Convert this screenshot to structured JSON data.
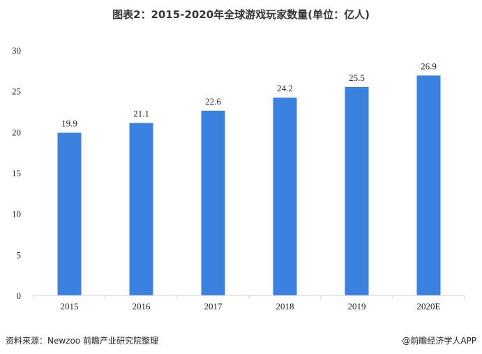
{
  "title": "图表2：2015-2020年全球游戏玩家数量(单位：亿人)",
  "source": "资料来源：Newzoo 前瞻产业研究院整理",
  "brand": "@前瞻经济学人APP",
  "colors": {
    "bar": "#3b82e0",
    "axis": "#d0d0d0",
    "text": "#222222"
  },
  "chart_data": {
    "type": "bar",
    "title": "图表2：2015-2020年全球游戏玩家数量(单位：亿人)",
    "xlabel": "",
    "ylabel": "",
    "categories": [
      "2015",
      "2016",
      "2017",
      "2018",
      "2019",
      "2020E"
    ],
    "values": [
      19.9,
      21.1,
      22.6,
      24.2,
      25.5,
      26.9
    ],
    "data_labels": [
      "19.9",
      "21.1",
      "22.6",
      "24.2",
      "25.5",
      "26.9"
    ],
    "ylim": [
      0,
      30
    ],
    "yticks": [
      "0",
      "5",
      "10",
      "15",
      "20",
      "25",
      "30"
    ],
    "grid": false,
    "legend": "none"
  }
}
